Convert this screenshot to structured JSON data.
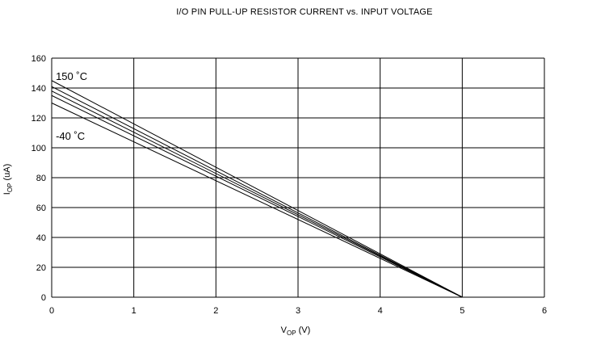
{
  "chart_data": {
    "type": "line",
    "title": "I/O PIN PULL-UP RESISTOR CURRENT vs. INPUT VOLTAGE",
    "xlabel": {
      "main": "V",
      "sub": "OP",
      "unit": " (V)"
    },
    "ylabel": {
      "main": "I",
      "sub": "OP",
      "unit": " (uA)"
    },
    "xlim": [
      0,
      6
    ],
    "ylim": [
      0,
      160
    ],
    "x_ticks": [
      0,
      1,
      2,
      3,
      4,
      5,
      6
    ],
    "y_ticks": [
      0,
      20,
      40,
      60,
      80,
      100,
      120,
      140,
      160
    ],
    "grid": true,
    "series": [
      {
        "x": [
          0,
          5
        ],
        "y": [
          145,
          0
        ]
      },
      {
        "x": [
          0,
          5
        ],
        "y": [
          141,
          0
        ]
      },
      {
        "x": [
          0,
          5
        ],
        "y": [
          138,
          0
        ]
      },
      {
        "x": [
          0,
          5
        ],
        "y": [
          135,
          0
        ]
      },
      {
        "x": [
          0,
          5
        ],
        "y": [
          130,
          0
        ]
      }
    ],
    "annotations": [
      {
        "text": "150 ˚C",
        "x": 0.05,
        "y": 148
      },
      {
        "text": "-40 ˚C",
        "x": 0.05,
        "y": 108
      }
    ]
  }
}
